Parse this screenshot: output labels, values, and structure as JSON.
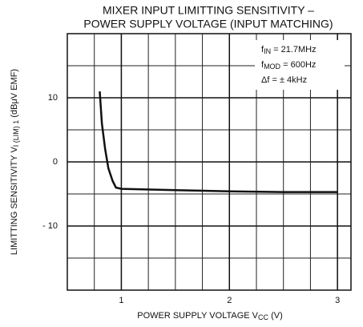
{
  "chart_data": {
    "type": "line",
    "title": [
      "MIXER INPUT LIMITTING SENSITIVITY  –",
      "POWER SUPPLY VOLTAGE (INPUT MATCHING)"
    ],
    "x_label": {
      "text": "POWER SUPPLY VOLTAGE   V",
      "sub": "CC",
      "rest": "  (V)"
    },
    "y_label": {
      "text": "LIMITTING SENSITIVITY    V",
      "sub": "I (LIM) 1",
      "rest": "   (dBμV EMF)"
    },
    "annotations": [
      {
        "text": "f",
        "sub": "IN",
        "rest": " = 21.7MHz"
      },
      {
        "text": "f",
        "sub": "MOD",
        "rest": " = 600Hz"
      },
      {
        "text": "Δf = ± 4kHz"
      }
    ],
    "x": [
      0.8,
      0.82,
      0.85,
      0.88,
      0.92,
      0.95,
      1.0,
      1.5,
      2.0,
      2.5,
      3.0
    ],
    "series": [
      {
        "color": "#111111",
        "values": [
          11,
          6,
          2,
          -1,
          -3,
          -4,
          -4.2,
          -4.4,
          -4.6,
          -4.7,
          -4.7
        ]
      }
    ],
    "xlim": [
      0.5,
      3.125
    ],
    "xticks": [
      1,
      2,
      3
    ],
    "xminor": 0.25,
    "ylim": [
      -20,
      20
    ],
    "yticks": [
      10,
      0,
      {
        "value": -10,
        "label": "- 10"
      }
    ],
    "yminor": 5,
    "grid": true
  }
}
